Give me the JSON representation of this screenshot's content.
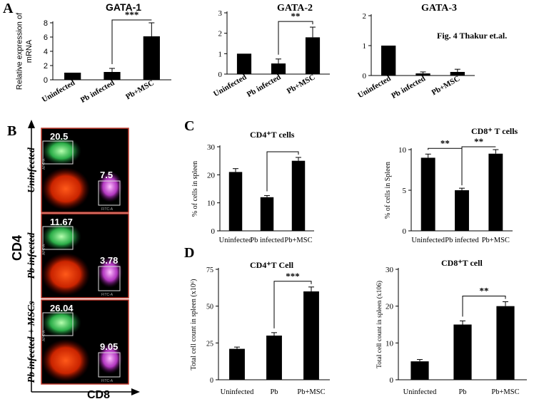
{
  "figure_label": "Fig. 4 Thakur et.al.",
  "panel_labels": {
    "A": "A",
    "B": "B",
    "C": "C",
    "D": "D"
  },
  "colors": {
    "bar": "#000000",
    "flow_bg": "#000000",
    "flow_border": "#c0392b",
    "cd4_pop": "#44dd66",
    "cd8_pop": "#e040fb",
    "neg_pop": "#ff3300"
  },
  "flow": {
    "y_axis_label": "CD4",
    "x_axis_label": "CD8",
    "gate_axis_y": "APC-A",
    "gate_axis_x": "FITC-A",
    "rows": [
      {
        "label": "Uninfected",
        "cd4_pct": "20.5",
        "cd8_pct": "7.5"
      },
      {
        "label": "Pb infected",
        "cd4_pct": "11.67",
        "cd8_pct": "3.78"
      },
      {
        "label": "Pb infected  + MSCs",
        "cd4_pct": "26.04",
        "cd8_pct": "9.05"
      }
    ]
  },
  "chart_data": [
    {
      "id": "gata1",
      "panel": "A",
      "type": "bar",
      "title": "GATA-1",
      "ylabel": "Relative expression of mRNA",
      "xlabel": "",
      "categories": [
        "Uninfected",
        "Pb infected",
        "Pb+MSC"
      ],
      "values": [
        1,
        1.1,
        6.1
      ],
      "errors": [
        0,
        0.5,
        1.9
      ],
      "ylim": [
        0,
        8
      ],
      "yticks": [
        "0",
        "2",
        "4",
        "6",
        "8"
      ],
      "sig": {
        "label": "***",
        "from": 1,
        "to": 2
      }
    },
    {
      "id": "gata2",
      "panel": "A",
      "type": "bar",
      "title": "GATA-2",
      "ylabel": "",
      "xlabel": "",
      "categories": [
        "Uninfected",
        "Pb infected",
        "Pb+MSC"
      ],
      "values": [
        1.0,
        0.52,
        1.8
      ],
      "errors": [
        0,
        0.22,
        0.5
      ],
      "ylim": [
        0,
        3
      ],
      "yticks": [
        "0",
        "1",
        "2",
        "3"
      ],
      "sig": {
        "label": "**",
        "from": 1,
        "to": 2
      }
    },
    {
      "id": "gata3",
      "panel": "A",
      "type": "bar",
      "title": "GATA-3",
      "ylabel": "",
      "xlabel": "",
      "categories": [
        "Uninfected",
        "Pb infected",
        "Pb+MSC"
      ],
      "values": [
        1.0,
        0.07,
        0.12
      ],
      "errors": [
        0,
        0.05,
        0.09
      ],
      "ylim": [
        0,
        2
      ],
      "yticks": [
        "0",
        "1",
        "2"
      ],
      "sig": null
    },
    {
      "id": "cd4_pct",
      "panel": "C",
      "type": "bar",
      "title": "CD4⁺T cells",
      "ylabel": "% of cells in spleen",
      "xlabel": "",
      "categories": [
        "Uninfected",
        "Pb infected",
        "Pb+MSC"
      ],
      "values": [
        21,
        12,
        25
      ],
      "errors": [
        1.2,
        0.6,
        1.2
      ],
      "ylim": [
        0,
        30
      ],
      "yticks": [
        "0",
        "10",
        "20",
        "30"
      ],
      "sig": {
        "label": "",
        "from": 1,
        "to": 2
      }
    },
    {
      "id": "cd8_pct",
      "panel": "C",
      "type": "bar",
      "title": "CD8⁺ T cells",
      "ylabel": "% of cells in Spleen",
      "xlabel": "",
      "categories": [
        "Uninfected",
        "Pb infected",
        "Pb+MSC"
      ],
      "values": [
        9,
        5,
        9.5
      ],
      "errors": [
        0.45,
        0.25,
        0.5
      ],
      "ylim": [
        0,
        10
      ],
      "yticks": [
        "0",
        "5",
        "10"
      ],
      "sig": {
        "label": "**",
        "from": 0,
        "to": 1
      },
      "sig2": {
        "label": "**",
        "from": 1,
        "to": 2
      }
    },
    {
      "id": "cd4_count",
      "panel": "D",
      "type": "bar",
      "title": "CD4⁺T Cell",
      "ylabel": "Total cell count in spleen (x10⁶)",
      "xlabel": "",
      "categories": [
        "Uninfected",
        "Pb",
        "Pb+MSC"
      ],
      "values": [
        21,
        30,
        60
      ],
      "errors": [
        1.2,
        2,
        3
      ],
      "ylim": [
        0,
        75
      ],
      "yticks": [
        "0",
        "25",
        "50",
        "75"
      ],
      "sig": {
        "label": "***",
        "from": 1,
        "to": 2
      }
    },
    {
      "id": "cd8_count",
      "panel": "D",
      "type": "bar",
      "title": "CD8⁺T cell",
      "ylabel": "Total cell count in spleen (x106)",
      "xlabel": "",
      "categories": [
        "Uninfected",
        "Pb",
        "Pb+MSC"
      ],
      "values": [
        5,
        15,
        20
      ],
      "errors": [
        0.5,
        1,
        1.2
      ],
      "ylim": [
        0,
        30
      ],
      "yticks": [
        "0",
        "10",
        "20",
        "30"
      ],
      "sig": {
        "label": "**",
        "from": 1,
        "to": 2
      }
    }
  ]
}
